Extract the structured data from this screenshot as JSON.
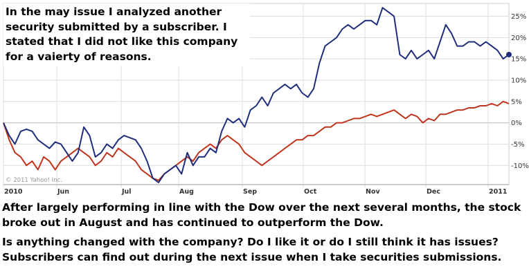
{
  "overlay_text": "In the may issue I analyzed another\nsecurity submitted by a subscriber. I\nstated that I did not like this company\nfor a vaierty of reasons.",
  "caption_1": "After largely performing in line with the Dow over the next several months, the stock broke out in August and has continued to outperform the Dow.",
  "caption_2": "Is anything changed with the company? Do I like it or do I still think it has issues? Subscribers can find out during the next issue when I take securities submissions.",
  "copyright": "© 2011 Yahoo! Inc.",
  "colors": {
    "stock": "#1f2d7a",
    "dow": "#c0341d",
    "grid": "#dddddd",
    "axis": "#888888"
  },
  "chart_data": {
    "type": "line",
    "title": "",
    "xlabel": "",
    "ylabel": "",
    "x_ticks": [
      "2010",
      "Jun",
      "Jul",
      "Aug",
      "Sep",
      "Oct",
      "Nov",
      "Dec",
      "2011"
    ],
    "y_ticks": [
      "25%",
      "20%",
      "15%",
      "10%",
      "5%",
      "0%",
      "-5%",
      "-10%"
    ],
    "y_tick_values": [
      25,
      20,
      15,
      10,
      5,
      0,
      -5,
      -10
    ],
    "ylim": [
      -14.5,
      28
    ],
    "grid": true,
    "series": [
      {
        "key": "stock",
        "points": [
          [
            0,
            0
          ],
          [
            2,
            -3
          ],
          [
            4,
            -5
          ],
          [
            6,
            -2
          ],
          [
            8,
            -1.5
          ],
          [
            10,
            -2
          ],
          [
            12,
            -4
          ],
          [
            14,
            -5
          ],
          [
            16,
            -6
          ],
          [
            18,
            -4.5
          ],
          [
            20,
            -5
          ],
          [
            22,
            -7
          ],
          [
            24,
            -9
          ],
          [
            26,
            -7
          ],
          [
            28,
            -1
          ],
          [
            30,
            -3
          ],
          [
            32,
            -8
          ],
          [
            34,
            -7
          ],
          [
            36,
            -5
          ],
          [
            38,
            -6
          ],
          [
            40,
            -4
          ],
          [
            42,
            -3
          ],
          [
            44,
            -3.5
          ],
          [
            46,
            -4
          ],
          [
            48,
            -6
          ],
          [
            50,
            -9
          ],
          [
            52,
            -13
          ],
          [
            54,
            -14
          ],
          [
            56,
            -12
          ],
          [
            58,
            -11
          ],
          [
            60,
            -10
          ],
          [
            62,
            -12
          ],
          [
            64,
            -7
          ],
          [
            66,
            -10
          ],
          [
            68,
            -8
          ],
          [
            70,
            -8
          ],
          [
            72,
            -6
          ],
          [
            74,
            -7
          ],
          [
            76,
            -2
          ],
          [
            78,
            1
          ],
          [
            80,
            0
          ],
          [
            82,
            1
          ],
          [
            84,
            -1
          ],
          [
            86,
            3
          ],
          [
            88,
            4
          ],
          [
            90,
            6
          ],
          [
            92,
            4
          ],
          [
            94,
            7
          ],
          [
            96,
            8
          ],
          [
            98,
            9
          ],
          [
            100,
            8
          ],
          [
            102,
            9
          ],
          [
            104,
            7
          ],
          [
            106,
            6
          ],
          [
            108,
            8
          ],
          [
            110,
            14
          ],
          [
            112,
            18
          ],
          [
            114,
            19
          ],
          [
            116,
            20
          ],
          [
            118,
            22
          ],
          [
            120,
            23
          ],
          [
            122,
            22
          ],
          [
            124,
            23
          ],
          [
            126,
            24
          ],
          [
            128,
            24
          ],
          [
            130,
            23
          ],
          [
            132,
            27
          ],
          [
            134,
            26
          ],
          [
            136,
            25
          ],
          [
            138,
            16
          ],
          [
            140,
            15
          ],
          [
            142,
            17
          ],
          [
            144,
            15
          ],
          [
            146,
            16
          ],
          [
            148,
            17
          ],
          [
            150,
            15
          ],
          [
            152,
            19
          ],
          [
            154,
            23
          ],
          [
            156,
            21
          ],
          [
            158,
            18
          ],
          [
            160,
            18
          ],
          [
            162,
            19
          ],
          [
            164,
            19
          ],
          [
            166,
            18
          ],
          [
            168,
            19
          ],
          [
            170,
            18
          ],
          [
            172,
            17
          ],
          [
            174,
            15
          ],
          [
            176,
            16
          ]
        ]
      },
      {
        "key": "dow",
        "points": [
          [
            0,
            0
          ],
          [
            2,
            -4
          ],
          [
            4,
            -7
          ],
          [
            6,
            -8
          ],
          [
            8,
            -10
          ],
          [
            10,
            -9
          ],
          [
            12,
            -11
          ],
          [
            14,
            -8
          ],
          [
            16,
            -9
          ],
          [
            18,
            -11
          ],
          [
            20,
            -9
          ],
          [
            22,
            -8
          ],
          [
            24,
            -7
          ],
          [
            26,
            -6
          ],
          [
            28,
            -7
          ],
          [
            30,
            -8
          ],
          [
            32,
            -10
          ],
          [
            34,
            -9
          ],
          [
            36,
            -7
          ],
          [
            38,
            -8
          ],
          [
            40,
            -6
          ],
          [
            42,
            -7
          ],
          [
            44,
            -8
          ],
          [
            46,
            -9
          ],
          [
            48,
            -11
          ],
          [
            50,
            -12
          ],
          [
            52,
            -13
          ],
          [
            54,
            -13.5
          ],
          [
            56,
            -12
          ],
          [
            58,
            -11
          ],
          [
            60,
            -10
          ],
          [
            62,
            -9
          ],
          [
            64,
            -8
          ],
          [
            66,
            -9
          ],
          [
            68,
            -7
          ],
          [
            70,
            -6
          ],
          [
            72,
            -5
          ],
          [
            74,
            -6
          ],
          [
            76,
            -4
          ],
          [
            78,
            -3
          ],
          [
            80,
            -4
          ],
          [
            82,
            -5
          ],
          [
            84,
            -7
          ],
          [
            86,
            -8
          ],
          [
            88,
            -9
          ],
          [
            90,
            -10
          ],
          [
            92,
            -9
          ],
          [
            94,
            -8
          ],
          [
            96,
            -7
          ],
          [
            98,
            -6
          ],
          [
            100,
            -5
          ],
          [
            102,
            -4
          ],
          [
            104,
            -4
          ],
          [
            106,
            -3
          ],
          [
            108,
            -3
          ],
          [
            110,
            -2
          ],
          [
            112,
            -1
          ],
          [
            114,
            -1
          ],
          [
            116,
            0
          ],
          [
            118,
            0
          ],
          [
            120,
            0.5
          ],
          [
            122,
            1
          ],
          [
            124,
            1
          ],
          [
            126,
            1.5
          ],
          [
            128,
            2
          ],
          [
            130,
            1.5
          ],
          [
            132,
            2
          ],
          [
            134,
            2.5
          ],
          [
            136,
            3
          ],
          [
            138,
            2
          ],
          [
            140,
            1
          ],
          [
            142,
            2
          ],
          [
            144,
            1.5
          ],
          [
            146,
            0
          ],
          [
            148,
            1
          ],
          [
            150,
            0.5
          ],
          [
            152,
            2
          ],
          [
            154,
            2
          ],
          [
            156,
            2.5
          ],
          [
            158,
            3
          ],
          [
            160,
            3
          ],
          [
            162,
            3.5
          ],
          [
            164,
            3.5
          ],
          [
            166,
            4
          ],
          [
            168,
            4
          ],
          [
            170,
            4.5
          ],
          [
            172,
            4
          ],
          [
            174,
            5
          ],
          [
            176,
            4.5
          ]
        ]
      }
    ]
  }
}
